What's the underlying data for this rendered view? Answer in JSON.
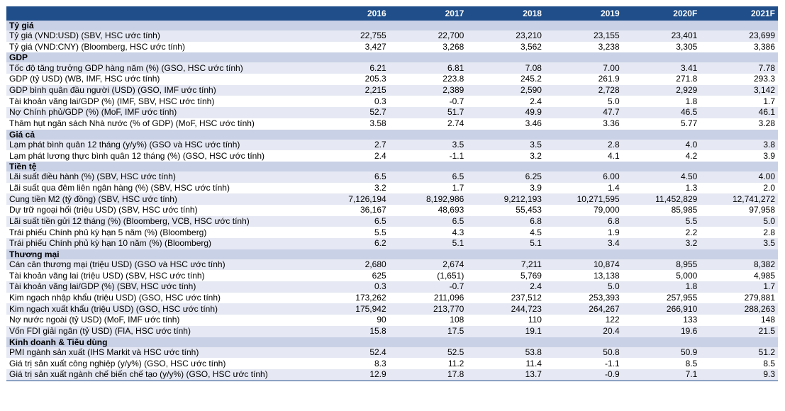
{
  "header": {
    "label": "",
    "years": [
      "2016",
      "2017",
      "2018",
      "2019",
      "2020F",
      "2021F"
    ]
  },
  "sections": [
    {
      "title": "Tỷ giá",
      "rows": [
        {
          "label": "Tỷ giá (VND:USD) (SBV, HSC ước tính)",
          "values": [
            "22,755",
            "22,700",
            "23,210",
            "23,155",
            "23,401",
            "23,699"
          ]
        },
        {
          "label": "Tỷ giá (VND:CNY) (Bloomberg, HSC ước tính)",
          "values": [
            "3,427",
            "3,268",
            "3,562",
            "3,238",
            "3,305",
            "3,386"
          ]
        }
      ]
    },
    {
      "title": "GDP",
      "rows": [
        {
          "label": "Tốc độ tăng trưởng GDP hàng năm (%) (GSO, HSC ước tính)",
          "values": [
            "6.21",
            "6.81",
            "7.08",
            "7.00",
            "3.41",
            "7.78"
          ]
        },
        {
          "label": "GDP (tỷ USD) (WB, IMF, HSC ước tính)",
          "values": [
            "205.3",
            "223.8",
            "245.2",
            "261.9",
            "271.8",
            "293.3"
          ]
        },
        {
          "label": "GDP bình quân đầu người (USD) (GSO, IMF ước tính)",
          "values": [
            "2,215",
            "2,389",
            "2,590",
            "2,728",
            "2,929",
            "3,142"
          ]
        },
        {
          "label": "Tài khoản vãng lai/GDP (%) (IMF, SBV, HSC ước tính)",
          "values": [
            "0.3",
            "-0.7",
            "2.4",
            "5.0",
            "1.8",
            "1.7"
          ]
        },
        {
          "label": "Nợ Chính phủ/GDP (%) (MoF, IMF ước tính)",
          "values": [
            "52.7",
            "51.7",
            "49.9",
            "47.7",
            "46.5",
            "46.1"
          ]
        },
        {
          "label": "Thâm hụt ngân sách Nhà nước (% of GDP) (MoF, HSC ước tính)",
          "values": [
            "3.58",
            "2.74",
            "3.46",
            "3.36",
            "5.77",
            "3.28"
          ]
        }
      ]
    },
    {
      "title": "Giá cả",
      "rows": [
        {
          "label": "Lạm phát bình quân 12 tháng (y/y%) (GSO và HSC ước tính)",
          "values": [
            "2.7",
            "3.5",
            "3.5",
            "2.8",
            "4.0",
            "3.8"
          ]
        },
        {
          "label": "Lạm phát lương thực bình quân 12 tháng (%) (GSO, HSC ước tính)",
          "values": [
            "2.4",
            "-1.1",
            "3.2",
            "4.1",
            "4.2",
            "3.9"
          ]
        }
      ]
    },
    {
      "title": "Tiền tệ",
      "rows": [
        {
          "label": "Lãi suất điều hành (%) (SBV, HSC ước tính)",
          "values": [
            "6.5",
            "6.5",
            "6.25",
            "6.00",
            "4.50",
            "4.00"
          ]
        },
        {
          "label": "Lãi suất qua đêm liên ngân hàng (%) (SBV, HSC ước tính)",
          "values": [
            "3.2",
            "1.7",
            "3.9",
            "1.4",
            "1.3",
            "2.0"
          ]
        },
        {
          "label": "Cung tiền M2 (tỷ đồng) (SBV, HSC ước tính)",
          "values": [
            "7,126,194",
            "8,192,986",
            "9,212,193",
            "10,271,595",
            "11,452,829",
            "12,741,272"
          ]
        },
        {
          "label": "Dự trữ ngoại hối (triệu USD) (SBV, HSC ước tính)",
          "values": [
            "36,167",
            "48,693",
            "55,453",
            "79,000",
            "85,985",
            "97,958"
          ]
        },
        {
          "label": "Lãi suất tiền gửi 12 tháng (%) (Bloomberg, VCB, HSC ước tính)",
          "values": [
            "6.5",
            "6.5",
            "6.8",
            "6.8",
            "5.5",
            "5.0"
          ]
        },
        {
          "label": "Trái phiếu Chính phủ kỳ hạn 5 năm (%) (Bloomberg)",
          "values": [
            "5.5",
            "4.3",
            "4.5",
            "1.9",
            "2.2",
            "2.8"
          ]
        },
        {
          "label": "Trái phiếu Chính phủ kỳ hạn 10 năm (%) (Bloomberg)",
          "values": [
            "6.2",
            "5.1",
            "5.1",
            "3.4",
            "3.2",
            "3.5"
          ]
        }
      ]
    },
    {
      "title": "Thương mại",
      "rows": [
        {
          "label": "Cán cân thương mại (triệu USD) (GSO và HSC ước tính)",
          "values": [
            "2,680",
            "2,674",
            "7,211",
            "10,874",
            "8,955",
            "8,382"
          ]
        },
        {
          "label": "Tài khoản vãng lai (triệu USD) (SBV, HSC ước tính)",
          "values": [
            "625",
            "(1,651)",
            "5,769",
            "13,138",
            "5,000",
            "4,985"
          ]
        },
        {
          "label": "Tài khoản vãng lai/GDP (%) (SBV, HSC ước tính)",
          "values": [
            "0.3",
            "-0.7",
            "2.4",
            "5.0",
            "1.8",
            "1.7"
          ]
        },
        {
          "label": "Kim ngạch nhập khẩu (triệu USD) (GSO, HSC ước tính)",
          "values": [
            "173,262",
            "211,096",
            "237,512",
            "253,393",
            "257,955",
            "279,881"
          ]
        },
        {
          "label": "Kim ngạch xuất khẩu (triệu USD) (GSO, HSC ước tính)",
          "values": [
            "175,942",
            "213,770",
            "244,723",
            "264,267",
            "266,910",
            "288,263"
          ]
        },
        {
          "label": "Nợ nước ngoài (tỷ USD) (MoF, IMF ước tính)",
          "values": [
            "90",
            "108",
            "110",
            "122",
            "133",
            "148"
          ]
        },
        {
          "label": "Vốn FDI giải ngân (tỷ USD) (FIA, HSC ước tính)",
          "values": [
            "15.8",
            "17.5",
            "19.1",
            "20.4",
            "19.6",
            "21.5"
          ]
        }
      ]
    },
    {
      "title": "Kinh doanh & Tiêu dùng",
      "rows": [
        {
          "label": "PMI ngành sản xuất (IHS Markit và HSC ước tính)",
          "values": [
            "52.4",
            "52.5",
            "53.8",
            "50.8",
            "50.9",
            "51.2"
          ]
        },
        {
          "label": "Giá trị sản xuất công nghiệp (y/y%) (GSO, HSC ước tính)",
          "values": [
            "8.3",
            "11.2",
            "11.4",
            "-1.1",
            "8.5",
            "8.5"
          ]
        },
        {
          "label": "Giá trị sản xuất ngành chế biến chế tạo (y/y%) (GSO, HSC ước tính)",
          "values": [
            "12.9",
            "17.8",
            "13.7",
            "-0.9",
            "7.1",
            "9.3"
          ]
        }
      ]
    }
  ]
}
